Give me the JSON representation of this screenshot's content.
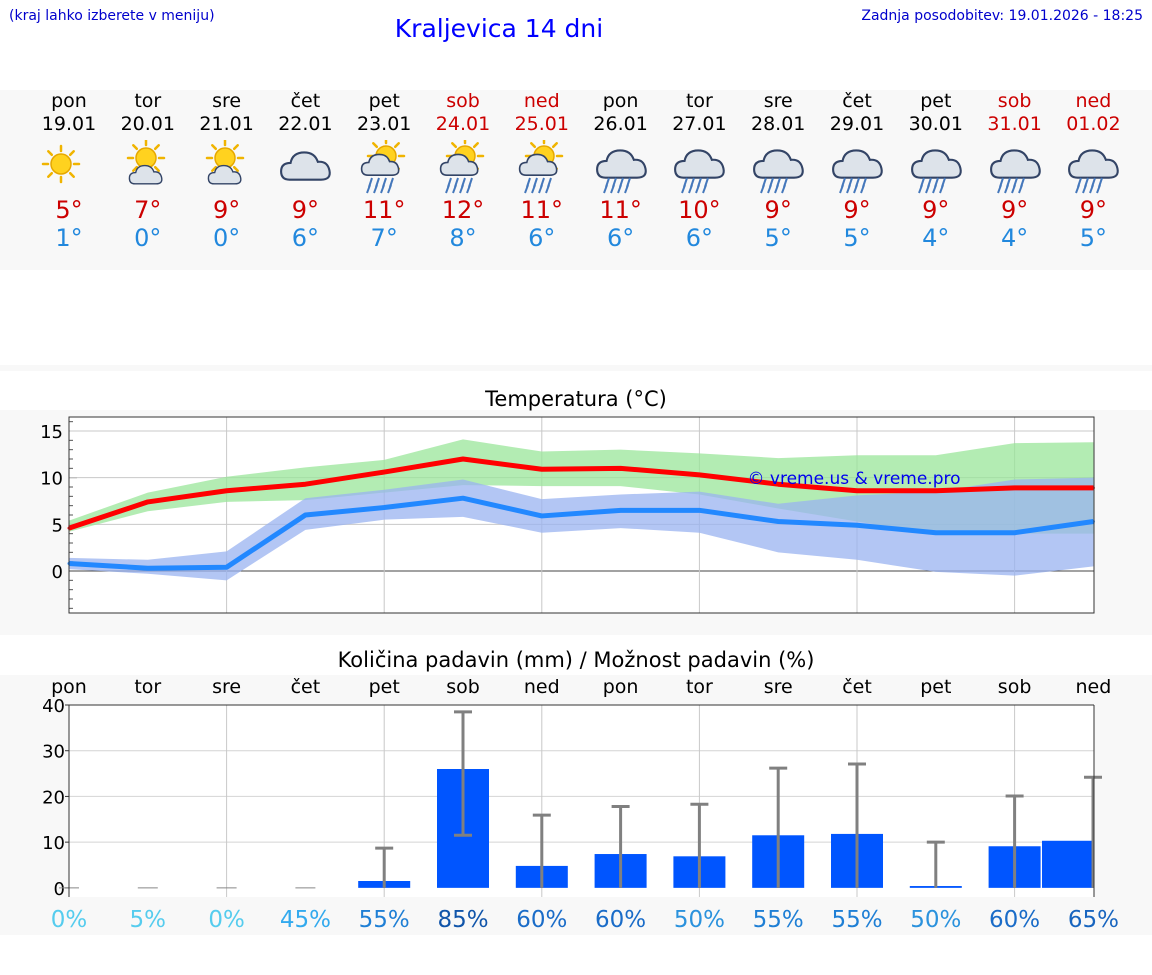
{
  "header": {
    "hint": "(kraj lahko izberete v meniju)",
    "title": "Kraljevica 14 dni",
    "updated": "Zadnja posodobitev: 19.01.2026 - 18:25"
  },
  "days": [
    {
      "name": "pon",
      "date": "19.01",
      "weekend": false,
      "icon": "sunny-icon",
      "tmax": "5°",
      "tmin": "1°"
    },
    {
      "name": "tor",
      "date": "20.01",
      "weekend": false,
      "icon": "sun-cloud-icon",
      "tmax": "7°",
      "tmin": "0°"
    },
    {
      "name": "sre",
      "date": "21.01",
      "weekend": false,
      "icon": "sun-cloud-icon",
      "tmax": "9°",
      "tmin": "0°"
    },
    {
      "name": "čet",
      "date": "22.01",
      "weekend": false,
      "icon": "cloudy-icon",
      "tmax": "9°",
      "tmin": "6°"
    },
    {
      "name": "pet",
      "date": "23.01",
      "weekend": false,
      "icon": "sun-cloud-rain-icon",
      "tmax": "11°",
      "tmin": "7°"
    },
    {
      "name": "sob",
      "date": "24.01",
      "weekend": true,
      "icon": "sun-cloud-rain-icon",
      "tmax": "12°",
      "tmin": "8°"
    },
    {
      "name": "ned",
      "date": "25.01",
      "weekend": true,
      "icon": "sun-cloud-rain-icon",
      "tmax": "11°",
      "tmin": "6°"
    },
    {
      "name": "pon",
      "date": "26.01",
      "weekend": false,
      "icon": "rain-icon",
      "tmax": "11°",
      "tmin": "6°"
    },
    {
      "name": "tor",
      "date": "27.01",
      "weekend": false,
      "icon": "rain-icon",
      "tmax": "10°",
      "tmin": "6°"
    },
    {
      "name": "sre",
      "date": "28.01",
      "weekend": false,
      "icon": "rain-icon",
      "tmax": "9°",
      "tmin": "5°"
    },
    {
      "name": "čet",
      "date": "29.01",
      "weekend": false,
      "icon": "rain-icon",
      "tmax": "9°",
      "tmin": "5°"
    },
    {
      "name": "pet",
      "date": "30.01",
      "weekend": false,
      "icon": "rain-icon",
      "tmax": "9°",
      "tmin": "4°"
    },
    {
      "name": "sob",
      "date": "31.01",
      "weekend": true,
      "icon": "rain-icon",
      "tmax": "9°",
      "tmin": "4°"
    },
    {
      "name": "ned",
      "date": "01.02",
      "weekend": true,
      "icon": "rain-icon",
      "tmax": "9°",
      "tmin": "5°"
    }
  ],
  "colors": {
    "max": "#ff0000",
    "min": "#2288ff",
    "max_band": "#99e699",
    "min_band": "#99b3f0",
    "bar": "#0055ff",
    "whisker": "#808080"
  },
  "chart_data": [
    {
      "type": "line",
      "title": "Temperatura (°C)",
      "ylim": [
        -4.5,
        16.5
      ],
      "yticks": [
        0,
        5,
        10,
        15
      ],
      "x": [
        0,
        1,
        2,
        3,
        4,
        5,
        6,
        7,
        8,
        9,
        10,
        11,
        12,
        13
      ],
      "series": [
        {
          "name": "max",
          "values": [
            4.6,
            7.4,
            8.6,
            9.3,
            10.6,
            12.0,
            10.9,
            11.0,
            10.3,
            9.3,
            8.6,
            8.6,
            8.9,
            8.9
          ],
          "band_low": [
            4.2,
            6.4,
            7.4,
            7.6,
            8.4,
            9.2,
            9.1,
            9.1,
            8.2,
            6.7,
            5.3,
            4.0,
            4.0,
            4.0
          ],
          "band_high": [
            5.4,
            8.4,
            10.1,
            11.1,
            11.9,
            14.1,
            12.8,
            13.0,
            12.6,
            12.1,
            12.4,
            12.4,
            13.7,
            13.8
          ]
        },
        {
          "name": "min",
          "values": [
            0.8,
            0.3,
            0.4,
            6.0,
            6.8,
            7.8,
            5.9,
            6.5,
            6.5,
            5.3,
            4.9,
            4.1,
            4.1,
            5.3
          ],
          "band_low": [
            0.2,
            -0.3,
            -1.0,
            4.4,
            5.5,
            5.8,
            4.1,
            4.6,
            4.1,
            2.0,
            1.2,
            -0.1,
            -0.5,
            0.5
          ],
          "band_high": [
            1.4,
            1.2,
            2.1,
            7.8,
            8.7,
            9.8,
            7.7,
            8.2,
            8.5,
            7.2,
            8.1,
            8.5,
            9.8,
            10.0
          ]
        }
      ],
      "watermark": "© vreme.us & vreme.pro"
    },
    {
      "type": "bar",
      "title": "Količina padavin (mm) / Možnost padavin (%)",
      "categories": [
        "pon",
        "tor",
        "sre",
        "čet",
        "pet",
        "sob",
        "ned",
        "pon",
        "tor",
        "sre",
        "čet",
        "pet",
        "sob",
        "ned"
      ],
      "values": [
        0,
        0,
        0,
        0,
        1.5,
        26,
        4.8,
        7.4,
        6.9,
        11.5,
        11.8,
        0.4,
        9.1,
        10.3
      ],
      "error_high": [
        0,
        0.1,
        0.1,
        0.1,
        8.7,
        38.5,
        15.9,
        17.8,
        18.3,
        26.2,
        27.1,
        10.0,
        20.1,
        24.2
      ],
      "error_low": [
        0,
        0,
        0,
        0,
        0,
        11.5,
        0,
        0,
        0,
        0,
        0,
        0,
        0,
        0
      ],
      "ylim": [
        -2,
        40
      ],
      "yticks": [
        0,
        10,
        20,
        30,
        40
      ],
      "probability": [
        "0%",
        "5%",
        "0%",
        "45%",
        "55%",
        "85%",
        "60%",
        "60%",
        "50%",
        "55%",
        "55%",
        "50%",
        "60%",
        "65%"
      ],
      "probability_colors": [
        "#55ccee",
        "#55ccee",
        "#55ccee",
        "#33aaee",
        "#1f7fd5",
        "#1155aa",
        "#1a6cc8",
        "#1a6cc8",
        "#2b92dd",
        "#1f7fd5",
        "#1f7fd5",
        "#2b92dd",
        "#1a6cc8",
        "#1865bf"
      ]
    }
  ]
}
